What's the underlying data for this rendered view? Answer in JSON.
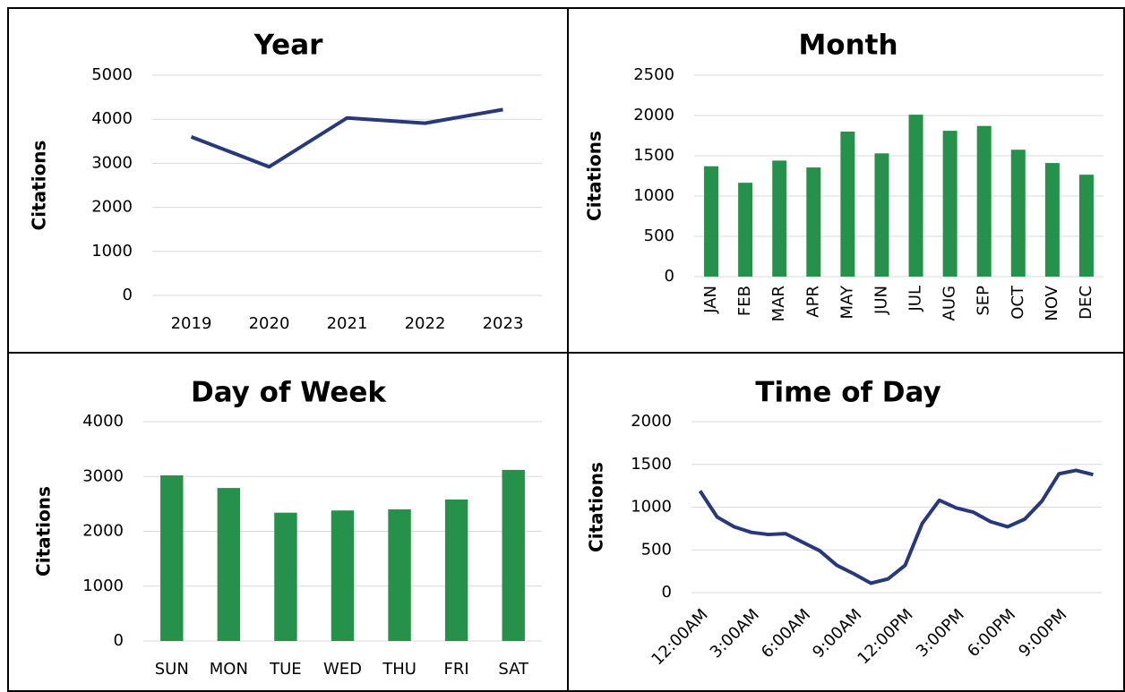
{
  "chart_data": [
    {
      "type": "line",
      "title": "Year",
      "y_label": "Citations",
      "color": "#27397b",
      "categories": [
        "2019",
        "2020",
        "2021",
        "2022",
        "2023"
      ],
      "values": [
        3600,
        2920,
        4030,
        3910,
        4220
      ],
      "ylim": [
        0,
        5000
      ],
      "yticks": [
        0,
        1000,
        2000,
        3000,
        4000,
        5000
      ],
      "grid": true
    },
    {
      "type": "bar",
      "title": "Month",
      "y_label": "Citations",
      "color": "#26914a",
      "categories": [
        "JAN",
        "FEB",
        "MAR",
        "APR",
        "MAY",
        "JUN",
        "JUL",
        "AUG",
        "SEP",
        "OCT",
        "NOV",
        "DEC"
      ],
      "values": [
        1370,
        1165,
        1440,
        1355,
        1800,
        1530,
        2010,
        1810,
        1870,
        1575,
        1410,
        1265
      ],
      "ylim": [
        0,
        2500
      ],
      "yticks": [
        0,
        500,
        1000,
        1500,
        2000,
        2500
      ],
      "grid": true
    },
    {
      "type": "bar",
      "title": "Day of Week",
      "y_label": "Citations",
      "color": "#26914a",
      "categories": [
        "SUN",
        "MON",
        "TUE",
        "WED",
        "THU",
        "FRI",
        "SAT"
      ],
      "values": [
        3020,
        2790,
        2340,
        2380,
        2400,
        2580,
        3120
      ],
      "ylim": [
        0,
        4000
      ],
      "yticks": [
        0,
        1000,
        2000,
        3000,
        4000
      ],
      "grid": true
    },
    {
      "type": "line",
      "title": "Time of Day",
      "y_label": "Citations",
      "color": "#27397b",
      "categories": [
        "12:00AM",
        null,
        null,
        "3:00AM",
        null,
        null,
        "6:00AM",
        null,
        null,
        "9:00AM",
        null,
        null,
        "12:00PM",
        null,
        null,
        "3:00PM",
        null,
        null,
        "6:00PM",
        null,
        null,
        "9:00PM",
        null,
        null
      ],
      "values": [
        1190,
        885,
        770,
        705,
        680,
        690,
        590,
        490,
        320,
        220,
        110,
        160,
        320,
        810,
        1080,
        990,
        940,
        830,
        770,
        860,
        1070,
        1390,
        1430,
        1380
      ],
      "ylim": [
        0,
        2000
      ],
      "yticks": [
        0,
        500,
        1000,
        1500,
        2000
      ],
      "grid": true
    }
  ]
}
